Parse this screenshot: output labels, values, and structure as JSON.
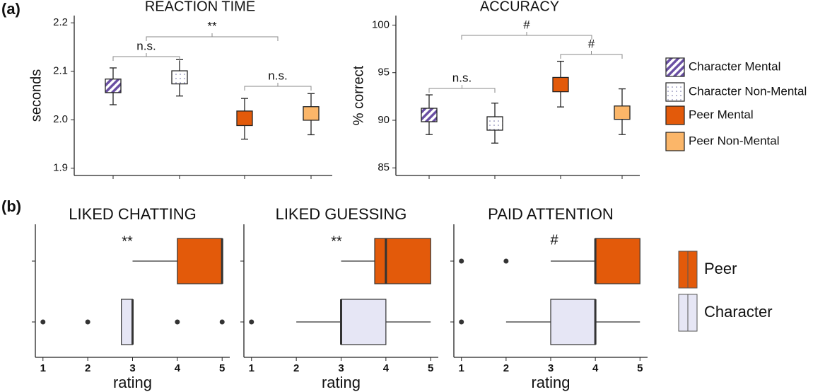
{
  "panel_labels": [
    "(a)",
    "(b)"
  ],
  "legend_a": {
    "names": [
      "Character Mental",
      "Character Non-Mental",
      "Peer Mental",
      "Peer Non-Mental"
    ],
    "colors": [
      "#6a4fa3",
      "#ffffff",
      "#e35a0a",
      "#fbb669"
    ],
    "patterns": [
      "hatch",
      "dots",
      "solid",
      "solid"
    ]
  },
  "legend_b": {
    "names": [
      "Peer",
      "Character"
    ],
    "colors": [
      "#e35a0a",
      "#e6e6f5"
    ]
  },
  "chart_data": [
    {
      "type": "box",
      "title": "REACTION TIME",
      "y_label": "seconds",
      "ylim": [
        1.885,
        2.215
      ],
      "yticks": [
        1.9,
        {
          "value": 2.0,
          "label": "2.0"
        },
        2.1,
        2.2
      ],
      "series": [
        {
          "whisker_low": 2.031,
          "box_low": 2.056,
          "box_high": 2.084,
          "whisker_high": 2.107
        },
        {
          "whisker_low": 2.049,
          "box_low": 2.074,
          "box_high": 2.101,
          "whisker_high": 2.124
        },
        {
          "whisker_low": 1.96,
          "box_low": 1.988,
          "box_high": 2.018,
          "whisker_high": 2.044
        },
        {
          "whisker_low": 1.969,
          "box_low": 1.999,
          "box_high": 2.027,
          "whisker_high": 2.054
        }
      ],
      "annotations": [
        "n.s.",
        "**",
        "n.s."
      ]
    },
    {
      "type": "box",
      "title": "ACCURACY",
      "y_label": "% correct",
      "ylim": [
        84.2,
        101
      ],
      "yticks": [
        85,
        90,
        95,
        100
      ],
      "series": [
        {
          "whisker_low": 88.5,
          "box_low": 89.85,
          "box_high": 91.26,
          "whisker_high": 92.67
        },
        {
          "whisker_low": 87.6,
          "box_low": 88.96,
          "box_high": 90.37,
          "whisker_high": 91.8
        },
        {
          "whisker_low": 91.4,
          "box_low": 93.0,
          "box_high": 94.5,
          "whisker_high": 96.2
        },
        {
          "whisker_low": 88.5,
          "box_low": 90.1,
          "box_high": 91.5,
          "whisker_high": 93.3
        }
      ],
      "annotations": [
        "n.s.",
        "#",
        "#"
      ]
    },
    {
      "type": "hbox",
      "title": "LIKED CHATTING",
      "x_label": "rating",
      "xlim": [
        0.83,
        5.17
      ],
      "xticks": [
        1,
        2,
        3,
        4,
        5
      ],
      "groups": [
        {
          "whisker_low": 3,
          "q1": 4,
          "median": 5,
          "q3": 5,
          "whisker_high": 5,
          "outliers": []
        },
        {
          "whisker_low": 2.75,
          "q1": 2.75,
          "median": 3,
          "q3": 3,
          "whisker_high": 3,
          "outliers": [
            1,
            2,
            4,
            5
          ]
        }
      ],
      "annotation": "**"
    },
    {
      "type": "hbox",
      "title": "LIKED GUESSING",
      "x_label": "rating",
      "xlim": [
        0.83,
        5.17
      ],
      "xticks": [
        1,
        2,
        3,
        4,
        5
      ],
      "groups": [
        {
          "whisker_low": 3,
          "q1": 3.75,
          "median": 4,
          "q3": 5,
          "whisker_high": 5,
          "outliers": []
        },
        {
          "whisker_low": 2,
          "q1": 3,
          "median": 3,
          "q3": 4,
          "whisker_high": 5,
          "outliers": [
            1
          ]
        }
      ],
      "annotation": "**"
    },
    {
      "type": "hbox",
      "title": "PAID ATTENTION",
      "x_label": "rating",
      "xlim": [
        0.83,
        5.17
      ],
      "xticks": [
        1,
        2,
        3,
        4,
        5
      ],
      "groups": [
        {
          "whisker_low": 3,
          "q1": 4,
          "median": 4,
          "q3": 5,
          "whisker_high": 5,
          "outliers": [
            1,
            2
          ]
        },
        {
          "whisker_low": 2,
          "q1": 3,
          "median": 4,
          "q3": 4,
          "whisker_high": 5,
          "outliers": [
            1
          ]
        }
      ],
      "annotation": "#"
    }
  ]
}
